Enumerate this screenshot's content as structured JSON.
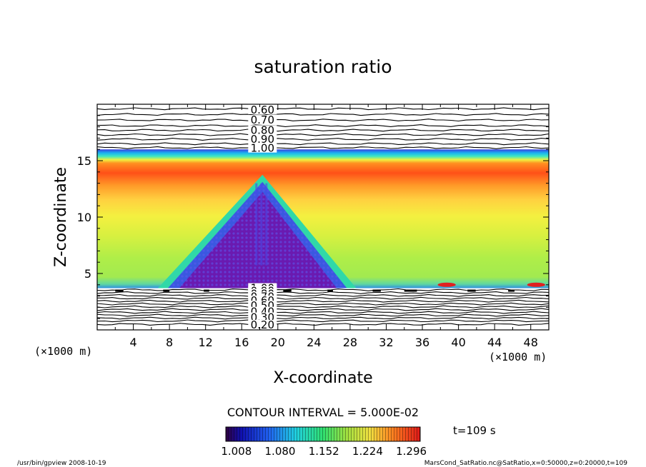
{
  "chart_data": {
    "type": "heatmap",
    "title": "saturation ratio",
    "xlabel": "X-coordinate",
    "ylabel": "Z-coordinate",
    "x_unit_left": "(×1000 m)",
    "x_unit_right": "(×1000 m)",
    "xlim": [
      0,
      50
    ],
    "ylim": [
      0,
      20
    ],
    "x_ticks": [
      4,
      8,
      12,
      16,
      20,
      24,
      28,
      32,
      36,
      40,
      44,
      48
    ],
    "x_tick_labels": [
      "4",
      "8",
      "12",
      "16",
      "20",
      "24",
      "28",
      "32",
      "36",
      "40",
      "44",
      "48"
    ],
    "y_ticks": [
      5,
      10,
      15
    ],
    "y_tick_labels": [
      "5",
      "10",
      "15"
    ],
    "contour_interval_text": "CONTOUR INTERVAL = 5.000E-02",
    "time_label": "t=109 s",
    "colorbar": {
      "range": [
        1.0,
        1.32
      ],
      "tick_values": [
        1.008,
        1.08,
        1.152,
        1.224,
        1.296
      ],
      "tick_labels": [
        "1.008",
        "1.080",
        "1.152",
        "1.224",
        "1.296"
      ]
    },
    "upper_contour_labels": [
      "0.60",
      "0.70",
      "0.80",
      "0.90",
      "1.00"
    ],
    "upper_contour_z": [
      19.5,
      18.6,
      17.7,
      16.9,
      16.1
    ],
    "lower_contour_labels": [
      "1.00",
      "0.90",
      "0.80",
      "0.70",
      "0.60",
      "0.50",
      "0.40",
      "0.30",
      "0.20"
    ],
    "lower_contour_z": [
      3.7,
      3.45,
      3.2,
      2.95,
      2.6,
      2.15,
      1.6,
      1.1,
      0.45
    ],
    "cloud_band_z": [
      3.7,
      16.0
    ],
    "mountain": {
      "peak_x": 18.3,
      "peak_z": 13.5,
      "left_base_x": 7.2,
      "right_base_x": 28.2,
      "base_z": 3.7
    }
  },
  "footer": {
    "left": "/usr/bin/gpview   2008-10-19",
    "right": "MarsCond_SatRatio.nc@SatRatio,x=0:50000,z=0:20000,t=109"
  }
}
